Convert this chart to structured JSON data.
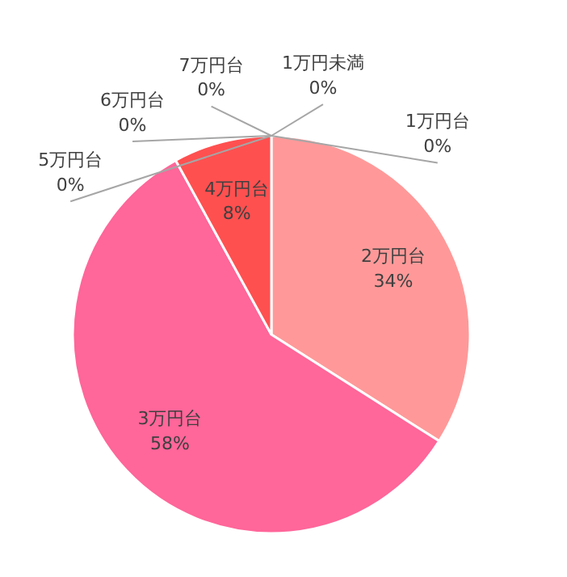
{
  "chart_data": {
    "type": "pie",
    "categories": [
      "1万円未満",
      "1万円台",
      "2万円台",
      "3万円台",
      "4万円台",
      "5万円台",
      "6万円台",
      "7万円台"
    ],
    "values": [
      0,
      0,
      34,
      58,
      8,
      0,
      0,
      0
    ],
    "colors": [
      "#ffc0c0",
      "#ffb0b0",
      "#ff9999",
      "#ff6699",
      "#ff5050",
      "#ff8080",
      "#ff7070",
      "#ff6060"
    ],
    "value_labels": [
      "0%",
      "0%",
      "34%",
      "58%",
      "8%",
      "0%",
      "0%",
      "0%"
    ]
  }
}
